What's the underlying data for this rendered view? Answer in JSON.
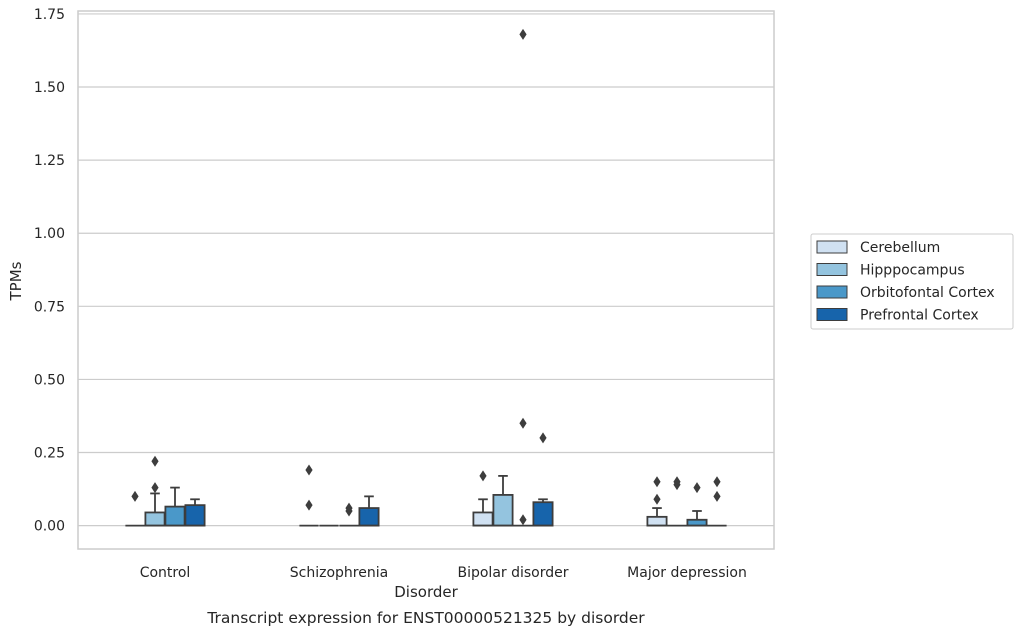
{
  "caption": "Transcript expression for ENST00000521325 by disorder",
  "chart_data": {
    "type": "box",
    "xlabel": "Disorder",
    "ylabel": "TPMs",
    "ylim": [
      -0.08,
      1.76
    ],
    "y_ticks": [
      "0.00",
      "0.25",
      "0.50",
      "0.75",
      "1.00",
      "1.25",
      "1.50",
      "1.75"
    ],
    "y_tick_values": [
      0,
      0.25,
      0.5,
      0.75,
      1.0,
      1.25,
      1.5,
      1.75
    ],
    "grid": "horizontal",
    "legend_position": "right",
    "categories": [
      "Control",
      "Schizophrenia",
      "Bipolar disorder",
      "Major depression"
    ],
    "series": [
      {
        "name": "Cerebellum",
        "color": "#d0e1f2",
        "boxes": [
          {
            "q1": 0,
            "median": 0,
            "q3": 0,
            "whislo": 0,
            "whishi": 0,
            "fliers": [
              0.1
            ]
          },
          {
            "q1": 0,
            "median": 0,
            "q3": 0,
            "whislo": 0,
            "whishi": 0,
            "fliers": [
              0.07,
              0.19
            ]
          },
          {
            "q1": 0,
            "median": 0,
            "q3": 0.045,
            "whislo": 0,
            "whishi": 0.09,
            "fliers": [
              0.17
            ]
          },
          {
            "q1": 0,
            "median": 0,
            "q3": 0.03,
            "whislo": 0,
            "whishi": 0.06,
            "fliers": [
              0.09,
              0.15
            ]
          }
        ]
      },
      {
        "name": "Hipppocampus",
        "color": "#94c4df",
        "boxes": [
          {
            "q1": 0,
            "median": 0,
            "q3": 0.045,
            "whislo": 0,
            "whishi": 0.11,
            "fliers": [
              0.13,
              0.22
            ]
          },
          {
            "q1": 0,
            "median": 0,
            "q3": 0,
            "whislo": 0,
            "whishi": 0,
            "fliers": []
          },
          {
            "q1": 0,
            "median": 0,
            "q3": 0.105,
            "whislo": 0,
            "whishi": 0.17,
            "fliers": []
          },
          {
            "q1": 0,
            "median": 0,
            "q3": 0,
            "whislo": 0,
            "whishi": 0,
            "fliers": [
              0.14,
              0.15
            ]
          }
        ]
      },
      {
        "name": "Orbitofontal Cortex",
        "color": "#4a98c9",
        "boxes": [
          {
            "q1": 0,
            "median": 0,
            "q3": 0.065,
            "whislo": 0,
            "whishi": 0.13,
            "fliers": []
          },
          {
            "q1": 0,
            "median": 0,
            "q3": 0,
            "whislo": 0,
            "whishi": 0,
            "fliers": [
              0.05,
              0.06
            ]
          },
          {
            "q1": 0,
            "median": 0,
            "q3": 0,
            "whislo": 0,
            "whishi": 0,
            "fliers": [
              0.02,
              0.35,
              1.68
            ]
          },
          {
            "q1": 0,
            "median": 0,
            "q3": 0.02,
            "whislo": 0,
            "whishi": 0.05,
            "fliers": [
              0.13
            ]
          }
        ]
      },
      {
        "name": "Prefrontal Cortex",
        "color": "#1764ab",
        "boxes": [
          {
            "q1": 0,
            "median": 0,
            "q3": 0.07,
            "whislo": 0,
            "whishi": 0.09,
            "fliers": []
          },
          {
            "q1": 0,
            "median": 0,
            "q3": 0.06,
            "whislo": 0,
            "whishi": 0.1,
            "fliers": []
          },
          {
            "q1": 0,
            "median": 0,
            "q3": 0.08,
            "whislo": 0,
            "whishi": 0.09,
            "fliers": [
              0.3
            ]
          },
          {
            "q1": 0,
            "median": 0,
            "q3": 0,
            "whislo": 0,
            "whishi": 0,
            "fliers": [
              0.1,
              0.15
            ]
          }
        ]
      }
    ],
    "colors": {
      "grid": "#cccccc",
      "spine": "#cccccc",
      "box_edge": "#3d3d3d",
      "flier": "#3d3d3d",
      "text": "#262626"
    }
  }
}
